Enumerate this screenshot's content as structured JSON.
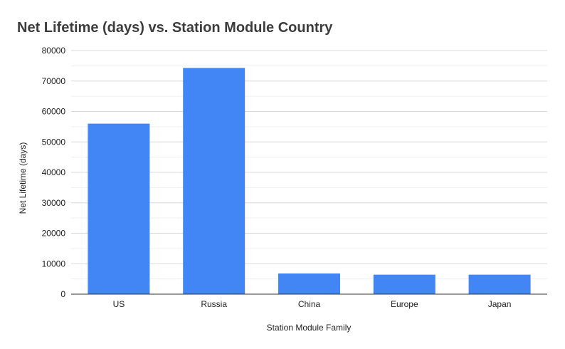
{
  "chart_data": {
    "type": "bar",
    "title": "Net Lifetime (days) vs. Station Module Country",
    "xlabel": "Station Module Family",
    "ylabel": "Net Lifetime (days)",
    "categories": [
      "US",
      "Russia",
      "China",
      "Europe",
      "Japan"
    ],
    "values": [
      56000,
      74300,
      6800,
      6400,
      6400
    ],
    "ylim": [
      0,
      80000
    ],
    "yticks": [
      0,
      10000,
      20000,
      30000,
      40000,
      50000,
      60000,
      70000,
      80000
    ],
    "grid": true,
    "legend": "none",
    "bar_color": "#4285f4"
  }
}
